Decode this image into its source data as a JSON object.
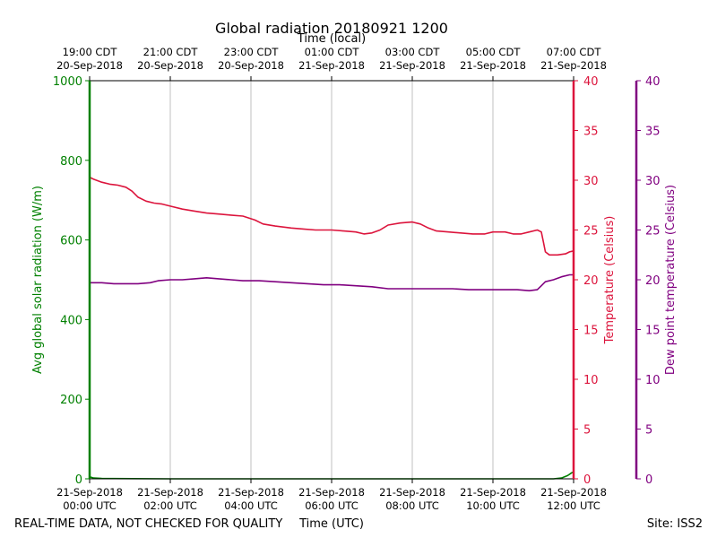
{
  "chart_data": {
    "type": "line",
    "title": "Global radiation 20180921 1200",
    "top_axis_label": "Time (local)",
    "xlabel": "Time (UTC)",
    "footer_left": "REAL-TIME DATA, NOT CHECKED FOR QUALITY",
    "footer_right": "Site: ISS2",
    "x_unit": "hours after 21-Sep-2018 00:00 UTC",
    "xlim": [
      0,
      12
    ],
    "grid": "vertical lines at bottom ticks",
    "bottom_ticks": [
      {
        "x": 0,
        "line1": "21-Sep-2018",
        "line2": "00:00 UTC"
      },
      {
        "x": 2,
        "line1": "21-Sep-2018",
        "line2": "02:00 UTC"
      },
      {
        "x": 4,
        "line1": "21-Sep-2018",
        "line2": "04:00 UTC"
      },
      {
        "x": 6,
        "line1": "21-Sep-2018",
        "line2": "06:00 UTC"
      },
      {
        "x": 8,
        "line1": "21-Sep-2018",
        "line2": "08:00 UTC"
      },
      {
        "x": 10,
        "line1": "21-Sep-2018",
        "line2": "10:00 UTC"
      },
      {
        "x": 12,
        "line1": "21-Sep-2018",
        "line2": "12:00 UTC"
      }
    ],
    "top_ticks": [
      {
        "x": 0,
        "line1": "19:00 CDT",
        "line2": "20-Sep-2018"
      },
      {
        "x": 2,
        "line1": "21:00 CDT",
        "line2": "20-Sep-2018"
      },
      {
        "x": 4,
        "line1": "23:00 CDT",
        "line2": "20-Sep-2018"
      },
      {
        "x": 6,
        "line1": "01:00 CDT",
        "line2": "21-Sep-2018"
      },
      {
        "x": 8,
        "line1": "03:00 CDT",
        "line2": "21-Sep-2018"
      },
      {
        "x": 10,
        "line1": "05:00 CDT",
        "line2": "21-Sep-2018"
      },
      {
        "x": 12,
        "line1": "07:00 CDT",
        "line2": "21-Sep-2018"
      }
    ],
    "axes": {
      "radiation": {
        "label": "Avg global solar radiation (W/m)",
        "ylim": [
          0,
          1000
        ],
        "ticks": [
          0,
          200,
          400,
          600,
          800,
          1000
        ],
        "color": "#008000"
      },
      "temperature": {
        "label": "Temperature (Celsius)",
        "ylim": [
          0,
          40
        ],
        "ticks": [
          0,
          5,
          10,
          15,
          20,
          25,
          30,
          35,
          40
        ],
        "color": "#dc143c"
      },
      "dewpoint": {
        "label": "Dew point temperature (Celsius)",
        "ylim": [
          0,
          40
        ],
        "ticks": [
          0,
          5,
          10,
          15,
          20,
          25,
          30,
          35,
          40
        ],
        "color": "#800080"
      }
    },
    "series": [
      {
        "axis": "radiation",
        "color": "#008000",
        "points": [
          [
            0,
            1000
          ],
          [
            0,
            5
          ],
          [
            0.1,
            2
          ],
          [
            0.3,
            1
          ],
          [
            2,
            0
          ],
          [
            4,
            0
          ],
          [
            6,
            0
          ],
          [
            8,
            0
          ],
          [
            10,
            0
          ],
          [
            11.5,
            0
          ],
          [
            11.7,
            2
          ],
          [
            11.85,
            8
          ],
          [
            11.95,
            15
          ],
          [
            12,
            17
          ]
        ]
      },
      {
        "axis": "temperature",
        "color": "#dc143c",
        "points": [
          [
            0,
            30.3
          ],
          [
            0.1,
            30.1
          ],
          [
            0.3,
            29.8
          ],
          [
            0.5,
            29.6
          ],
          [
            0.7,
            29.5
          ],
          [
            0.9,
            29.3
          ],
          [
            1.05,
            28.9
          ],
          [
            1.2,
            28.3
          ],
          [
            1.4,
            27.9
          ],
          [
            1.6,
            27.7
          ],
          [
            1.8,
            27.6
          ],
          [
            2.0,
            27.4
          ],
          [
            2.3,
            27.1
          ],
          [
            2.6,
            26.9
          ],
          [
            2.9,
            26.7
          ],
          [
            3.2,
            26.6
          ],
          [
            3.5,
            26.5
          ],
          [
            3.8,
            26.4
          ],
          [
            4.1,
            26.0
          ],
          [
            4.3,
            25.6
          ],
          [
            4.6,
            25.4
          ],
          [
            5.0,
            25.2
          ],
          [
            5.3,
            25.1
          ],
          [
            5.6,
            25.0
          ],
          [
            6.0,
            25.0
          ],
          [
            6.3,
            24.9
          ],
          [
            6.6,
            24.8
          ],
          [
            6.8,
            24.6
          ],
          [
            7.0,
            24.7
          ],
          [
            7.2,
            25.0
          ],
          [
            7.4,
            25.5
          ],
          [
            7.7,
            25.7
          ],
          [
            8.0,
            25.8
          ],
          [
            8.2,
            25.6
          ],
          [
            8.4,
            25.2
          ],
          [
            8.6,
            24.9
          ],
          [
            8.9,
            24.8
          ],
          [
            9.2,
            24.7
          ],
          [
            9.5,
            24.6
          ],
          [
            9.8,
            24.6
          ],
          [
            10.0,
            24.8
          ],
          [
            10.3,
            24.8
          ],
          [
            10.5,
            24.6
          ],
          [
            10.7,
            24.6
          ],
          [
            10.9,
            24.8
          ],
          [
            11.1,
            25.0
          ],
          [
            11.2,
            24.8
          ],
          [
            11.25,
            23.8
          ],
          [
            11.3,
            22.8
          ],
          [
            11.4,
            22.5
          ],
          [
            11.6,
            22.5
          ],
          [
            11.8,
            22.6
          ],
          [
            11.9,
            22.8
          ],
          [
            12.0,
            22.9
          ]
        ]
      },
      {
        "axis": "dewpoint",
        "color": "#800080",
        "points": [
          [
            0,
            19.7
          ],
          [
            0.3,
            19.7
          ],
          [
            0.6,
            19.6
          ],
          [
            0.9,
            19.6
          ],
          [
            1.2,
            19.6
          ],
          [
            1.5,
            19.7
          ],
          [
            1.7,
            19.9
          ],
          [
            2.0,
            20.0
          ],
          [
            2.3,
            20.0
          ],
          [
            2.6,
            20.1
          ],
          [
            2.9,
            20.2
          ],
          [
            3.2,
            20.1
          ],
          [
            3.5,
            20.0
          ],
          [
            3.8,
            19.9
          ],
          [
            4.2,
            19.9
          ],
          [
            4.6,
            19.8
          ],
          [
            5.0,
            19.7
          ],
          [
            5.4,
            19.6
          ],
          [
            5.8,
            19.5
          ],
          [
            6.2,
            19.5
          ],
          [
            6.6,
            19.4
          ],
          [
            7.0,
            19.3
          ],
          [
            7.4,
            19.1
          ],
          [
            7.8,
            19.1
          ],
          [
            8.2,
            19.1
          ],
          [
            8.6,
            19.1
          ],
          [
            9.0,
            19.1
          ],
          [
            9.4,
            19.0
          ],
          [
            9.8,
            19.0
          ],
          [
            10.2,
            19.0
          ],
          [
            10.6,
            19.0
          ],
          [
            10.9,
            18.9
          ],
          [
            11.1,
            19.0
          ],
          [
            11.2,
            19.4
          ],
          [
            11.3,
            19.8
          ],
          [
            11.5,
            20.0
          ],
          [
            11.7,
            20.3
          ],
          [
            11.9,
            20.5
          ],
          [
            12.0,
            20.5
          ]
        ]
      }
    ]
  }
}
